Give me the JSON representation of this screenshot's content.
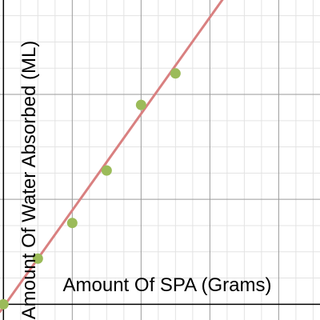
{
  "chart_data": {
    "type": "scatter",
    "xlabel": "Amount Of SPA (Grams)",
    "ylabel": "Amount Of Water Absorbed (ML)",
    "xlim": [
      -0.1,
      9.2
    ],
    "ylim": [
      -0.3,
      5.8
    ],
    "grid": true,
    "points": {
      "x": [
        0,
        1,
        2,
        3,
        4,
        5
      ],
      "y": [
        0,
        0.87,
        1.55,
        2.55,
        3.8,
        4.4
      ]
    },
    "trendline": {
      "slope": 0.92,
      "intercept": -0.05
    },
    "colors": {
      "points": "#9bbb59",
      "trendline": "#d98080"
    }
  }
}
